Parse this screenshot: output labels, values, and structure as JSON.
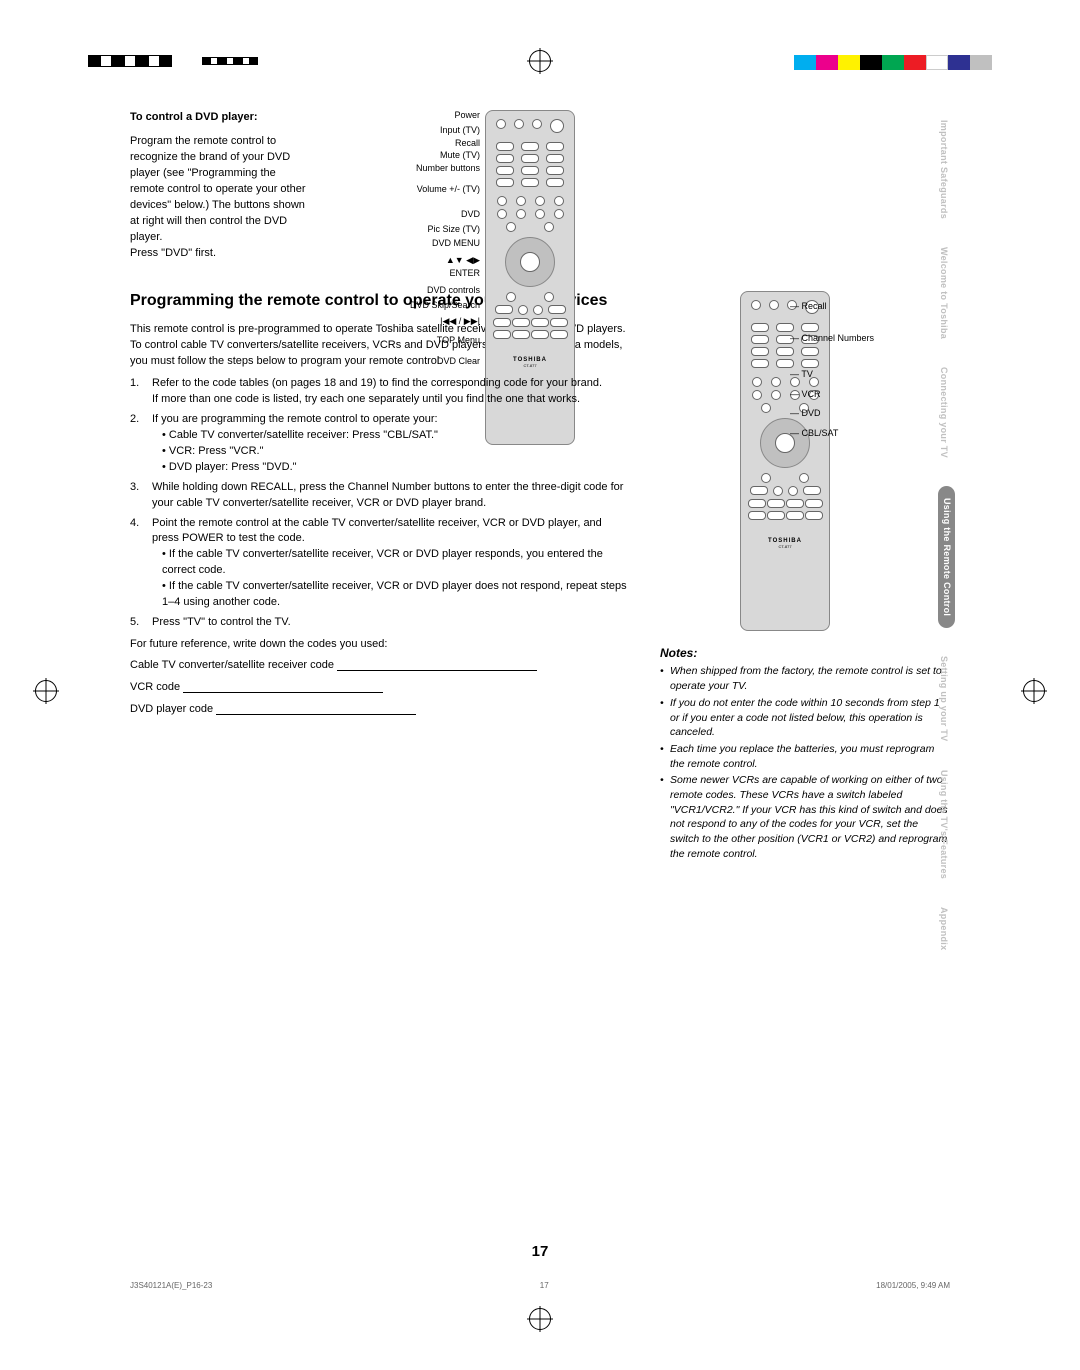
{
  "page_number": "17",
  "footer": {
    "left": "J3S40121A(E)_P16-23",
    "mid": "17",
    "right": "18/01/2005, 9:49 AM"
  },
  "colorbar": [
    "#00aeef",
    "#ec008c",
    "#fff200",
    "#000000",
    "#00a651",
    "#ed1c24",
    "#ffffff",
    "#2e3192",
    "#c0c0c0"
  ],
  "dvd_section": {
    "heading": "To control a DVD player:",
    "para": "Program the remote control to recognize the brand of your DVD player (see \"Programming the remote control to operate your other devices\" below.) The buttons shown at right will then control the DVD player.",
    "press": "Press \"DVD\" first.",
    "labels": [
      "Power",
      "Input (TV)",
      "Recall",
      "Mute (TV)",
      "Number buttons",
      "",
      "Volume +/- (TV)",
      "DVD",
      "Pic Size (TV)",
      "DVD MENU",
      "▲▼ ◀▶",
      "ENTER",
      "DVD controls",
      "DVD Skip/Search",
      "|◀◀ / ▶▶|",
      "",
      "TOP Menu",
      "DVD Clear"
    ]
  },
  "main": {
    "title": "Programming the remote control to operate your other devices",
    "intro": "This remote control is pre-programmed to operate Toshiba satellite receivers, VCRs and DVD players. To control cable TV converters/satellite receivers, VCRs and DVD players other than Toshiba models, you must follow the steps below to program your remote control.",
    "steps": [
      {
        "n": "1.",
        "t": "Refer to the code tables (on pages 18 and 19) to find the corresponding code for your brand.\nIf more than one code is listed, try each one separately until you find the one that works."
      },
      {
        "n": "2.",
        "t": "If you are programming the remote control to operate your:",
        "subs": [
          "• Cable TV converter/satellite receiver: Press \"CBL/SAT.\"",
          "• VCR: Press \"VCR.\"",
          "• DVD player: Press \"DVD.\""
        ]
      },
      {
        "n": "3.",
        "t": "While holding down RECALL, press the Channel Number buttons to enter the three-digit code for your cable TV converter/satellite receiver, VCR or DVD player brand."
      },
      {
        "n": "4.",
        "t": "Point the remote control at the cable TV converter/satellite receiver, VCR or DVD player, and press POWER to test the code.",
        "subs": [
          "• If the cable TV converter/satellite receiver, VCR or DVD player responds, you entered the correct code.",
          "• If the cable TV converter/satellite receiver, VCR or DVD player does not respond, repeat steps 1–4 using another code."
        ]
      },
      {
        "n": "5.",
        "t": "Press \"TV\" to control the TV."
      }
    ],
    "future": "For future reference, write down the codes you used:",
    "codes": [
      "Cable TV converter/satellite receiver code",
      "VCR code",
      "DVD player code"
    ]
  },
  "remote2_labels": [
    "Recall",
    "Channel Numbers",
    "TV",
    "VCR",
    "DVD",
    "CBL/SAT"
  ],
  "notes": {
    "heading": "Notes:",
    "items": [
      "When shipped from the factory, the remote control is set to operate your TV.",
      "If you do not enter the code within 10 seconds from step 1 or if you enter a code not listed below, this operation is canceled.",
      "Each time you replace the batteries, you must reprogram the remote control.",
      "Some newer VCRs are capable of working on either of two remote codes. These VCRs have a switch labeled \"VCR1/VCR2.\" If your VCR has this kind of switch and does not respond to any of the codes for your VCR, set the switch to the other position (VCR1 or VCR2) and reprogram the remote control."
    ]
  },
  "tabs": [
    "Important Safeguards",
    "Welcome to Toshiba",
    "Connecting your TV",
    "Using the Remote Control",
    "Setting up your TV",
    "Using the TV's Features",
    "Appendix"
  ],
  "active_tab": 3,
  "remote_brand": "TOSHIBA",
  "remote_model": "CT-877"
}
